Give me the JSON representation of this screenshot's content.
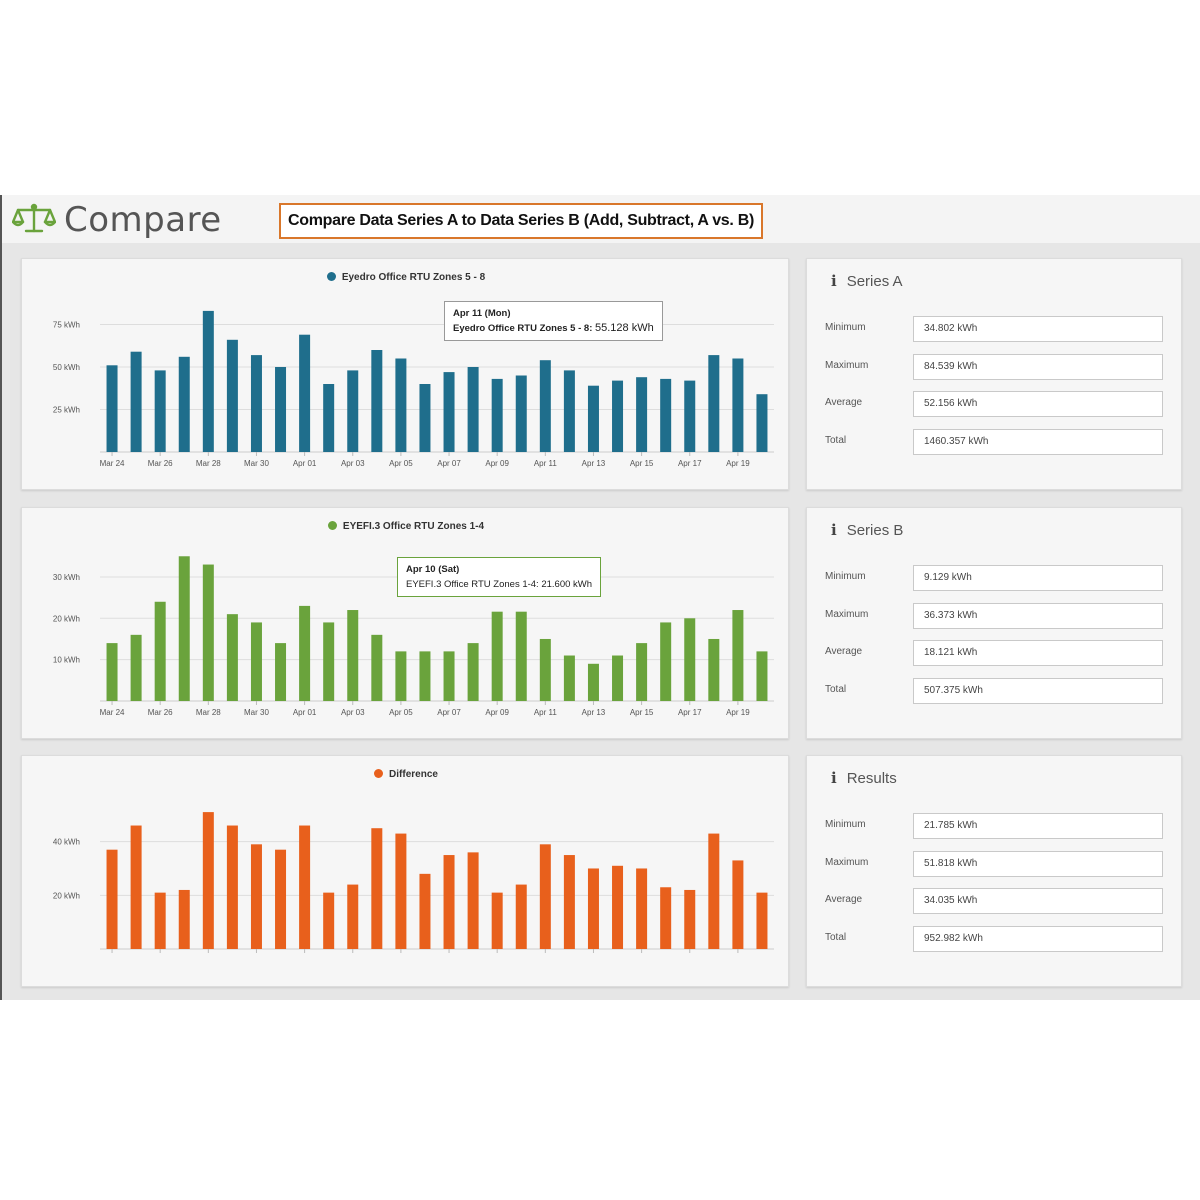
{
  "app": {
    "title": "Compare",
    "icon": "scale-icon"
  },
  "banner": {
    "text": "Compare Data Series A to Data Series B (Add, Subtract, A vs. B)"
  },
  "colors": {
    "series_a": "#1f6e8c",
    "series_b": "#6aa33c",
    "difference": "#e8601c",
    "banner_border": "#d9772b"
  },
  "charts": [
    {
      "legend": "Eyedro Office RTU Zones 5 - 8",
      "tooltip": {
        "date": "Apr 11 (Mon)",
        "series": "Eyedro Office RTU Zones 5 - 8:",
        "value": "55.128 kWh"
      }
    },
    {
      "legend": "EYEFI.3 Office RTU Zones 1-4",
      "tooltip": {
        "date": "Apr 10 (Sat)",
        "series": "EYEFI.3 Office RTU Zones 1-4:",
        "value": "21.600 kWh"
      }
    },
    {
      "legend": "Difference",
      "tooltip": null
    }
  ],
  "chart_data": [
    {
      "type": "bar",
      "color": "#1f6e8c",
      "series": [
        {
          "name": "Eyedro Office RTU Zones 5 - 8",
          "values": [
            51,
            59,
            48,
            56,
            83,
            66,
            57,
            50,
            69,
            40,
            48,
            60,
            55,
            40,
            47,
            50,
            43,
            45,
            54,
            48,
            39,
            42,
            44,
            43,
            42,
            57,
            55,
            34
          ]
        }
      ],
      "x_tick_labels": [
        "Mar 24",
        "Mar 26",
        "Mar 28",
        "Mar 30",
        "Apr 01",
        "Apr 03",
        "Apr 05",
        "Apr 07",
        "Apr 09",
        "Apr 11",
        "Apr 13",
        "Apr 15",
        "Apr 17",
        "Apr 19"
      ],
      "y_ticks": [
        {
          "value": 25,
          "label": "25 kWh"
        },
        {
          "value": 50,
          "label": "50 kWh"
        },
        {
          "value": 75,
          "label": "75 kWh"
        }
      ],
      "ylim": [
        0,
        90
      ],
      "grid": true
    },
    {
      "type": "bar",
      "color": "#6aa33c",
      "series": [
        {
          "name": "EYEFI.3 Office RTU Zones 1-4",
          "values": [
            14,
            16,
            24,
            35,
            33,
            21,
            19,
            14,
            23,
            19,
            22,
            16,
            12,
            12,
            12,
            14,
            21.6,
            21.6,
            15,
            11,
            9,
            11,
            14,
            19,
            20,
            15,
            22,
            12
          ]
        }
      ],
      "x_tick_labels": [
        "Mar 24",
        "Mar 26",
        "Mar 28",
        "Mar 30",
        "Apr 01",
        "Apr 03",
        "Apr 05",
        "Apr 07",
        "Apr 09",
        "Apr 11",
        "Apr 13",
        "Apr 15",
        "Apr 17",
        "Apr 19"
      ],
      "y_ticks": [
        {
          "value": 10,
          "label": "10 kWh"
        },
        {
          "value": 20,
          "label": "20 kWh"
        },
        {
          "value": 30,
          "label": "30 kWh"
        }
      ],
      "ylim": [
        0,
        37
      ],
      "grid": true
    },
    {
      "type": "bar",
      "color": "#e8601c",
      "series": [
        {
          "name": "Difference",
          "values": [
            37,
            46,
            21,
            22,
            51,
            46,
            39,
            37,
            46,
            21,
            24,
            45,
            43,
            28,
            35,
            36,
            21,
            24,
            39,
            35,
            30,
            31,
            30,
            23,
            22,
            43,
            33,
            21
          ]
        }
      ],
      "x_tick_labels": [],
      "y_ticks": [
        {
          "value": 20,
          "label": "20 kWh"
        },
        {
          "value": 40,
          "label": "40 kWh"
        }
      ],
      "ylim": [
        0,
        57
      ],
      "grid": true
    }
  ],
  "stats": [
    {
      "title": "Series A",
      "rows": [
        {
          "label": "Minimum",
          "value": "34.802 kWh"
        },
        {
          "label": "Maximum",
          "value": "84.539 kWh"
        },
        {
          "label": "Average",
          "value": "52.156 kWh"
        },
        {
          "label": "Total",
          "value": "1460.357 kWh"
        }
      ]
    },
    {
      "title": "Series B",
      "rows": [
        {
          "label": "Minimum",
          "value": "9.129 kWh"
        },
        {
          "label": "Maximum",
          "value": "36.373 kWh"
        },
        {
          "label": "Average",
          "value": "18.121 kWh"
        },
        {
          "label": "Total",
          "value": "507.375 kWh"
        }
      ]
    },
    {
      "title": "Results",
      "rows": [
        {
          "label": "Minimum",
          "value": "21.785 kWh"
        },
        {
          "label": "Maximum",
          "value": "51.818 kWh"
        },
        {
          "label": "Average",
          "value": "34.035 kWh"
        },
        {
          "label": "Total",
          "value": "952.982 kWh"
        }
      ]
    }
  ]
}
